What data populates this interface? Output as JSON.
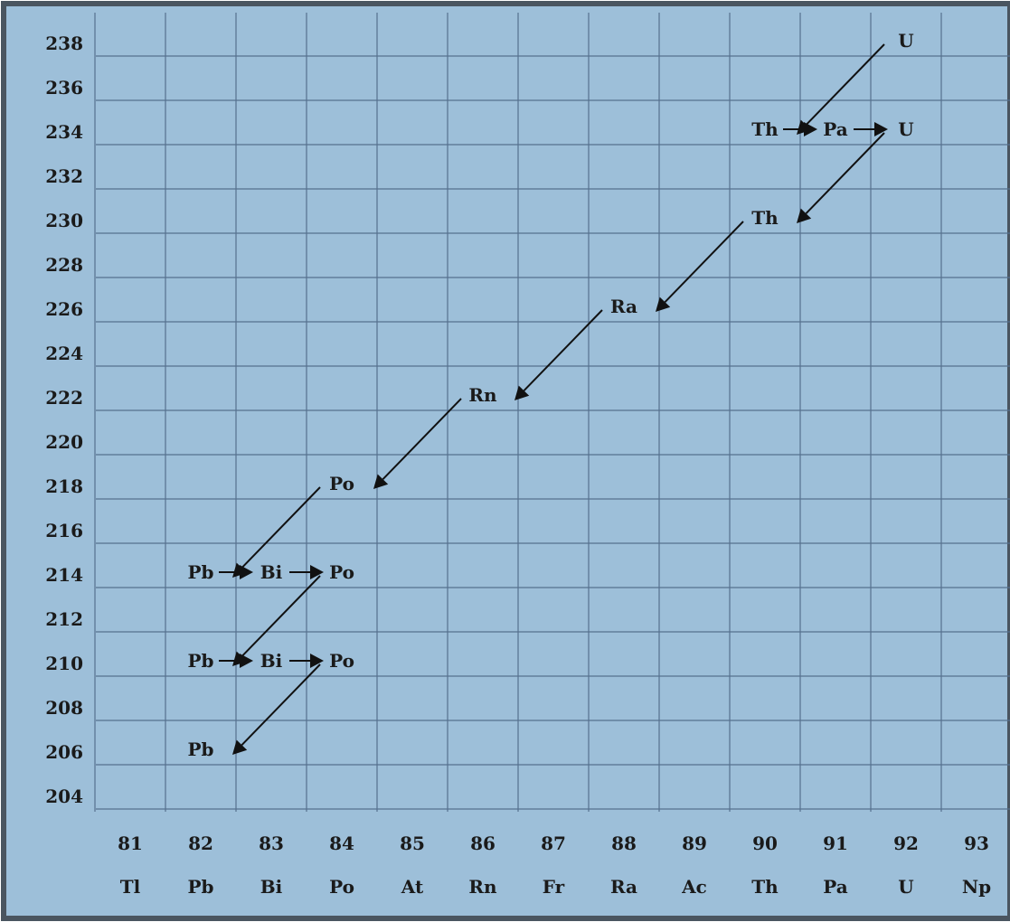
{
  "diagram": {
    "background_color": "#9dbfd9",
    "border_color": "#4a5560",
    "grid_color": "#56708e",
    "y_axis": {
      "values": [
        238,
        236,
        234,
        232,
        230,
        228,
        226,
        224,
        222,
        220,
        218,
        216,
        214,
        212,
        210,
        208,
        206,
        204
      ]
    },
    "x_axis": {
      "numbers": [
        "81",
        "82",
        "83",
        "84",
        "85",
        "86",
        "87",
        "88",
        "89",
        "90",
        "91",
        "92",
        "93"
      ],
      "symbols": [
        "Tl",
        "Pb",
        "Bi",
        "Po",
        "At",
        "Rn",
        "Fr",
        "Ra",
        "Ac",
        "Th",
        "Pa",
        "U",
        "Np"
      ]
    },
    "nuclides": [
      {
        "symbol": "U",
        "z": 92,
        "a": 238
      },
      {
        "symbol": "Th",
        "z": 90,
        "a": 234
      },
      {
        "symbol": "Pa",
        "z": 91,
        "a": 234
      },
      {
        "symbol": "U",
        "z": 92,
        "a": 234
      },
      {
        "symbol": "Th",
        "z": 90,
        "a": 230
      },
      {
        "symbol": "Ra",
        "z": 88,
        "a": 226
      },
      {
        "symbol": "Rn",
        "z": 86,
        "a": 222
      },
      {
        "symbol": "Po",
        "z": 84,
        "a": 218
      },
      {
        "symbol": "Pb",
        "z": 82,
        "a": 214
      },
      {
        "symbol": "Bi",
        "z": 83,
        "a": 214
      },
      {
        "symbol": "Po",
        "z": 84,
        "a": 214
      },
      {
        "symbol": "Pb",
        "z": 82,
        "a": 210
      },
      {
        "symbol": "Bi",
        "z": 83,
        "a": 210
      },
      {
        "symbol": "Po",
        "z": 84,
        "a": 210
      },
      {
        "symbol": "Pb",
        "z": 82,
        "a": 206
      }
    ],
    "alpha_decays": [
      {
        "from": [
          92,
          238
        ],
        "to": [
          90,
          234
        ]
      },
      {
        "from": [
          92,
          234
        ],
        "to": [
          90,
          230
        ]
      },
      {
        "from": [
          90,
          230
        ],
        "to": [
          88,
          226
        ]
      },
      {
        "from": [
          88,
          226
        ],
        "to": [
          86,
          222
        ]
      },
      {
        "from": [
          86,
          222
        ],
        "to": [
          84,
          218
        ]
      },
      {
        "from": [
          84,
          218
        ],
        "to": [
          82,
          214
        ]
      },
      {
        "from": [
          84,
          214
        ],
        "to": [
          82,
          210
        ]
      },
      {
        "from": [
          84,
          210
        ],
        "to": [
          82,
          206
        ]
      }
    ],
    "beta_decays": [
      {
        "from": [
          90,
          234
        ],
        "to": [
          91,
          234
        ]
      },
      {
        "from": [
          91,
          234
        ],
        "to": [
          92,
          234
        ]
      },
      {
        "from": [
          82,
          214
        ],
        "to": [
          83,
          214
        ]
      },
      {
        "from": [
          83,
          214
        ],
        "to": [
          84,
          214
        ]
      },
      {
        "from": [
          82,
          210
        ],
        "to": [
          83,
          210
        ]
      },
      {
        "from": [
          83,
          210
        ],
        "to": [
          84,
          210
        ]
      }
    ]
  }
}
